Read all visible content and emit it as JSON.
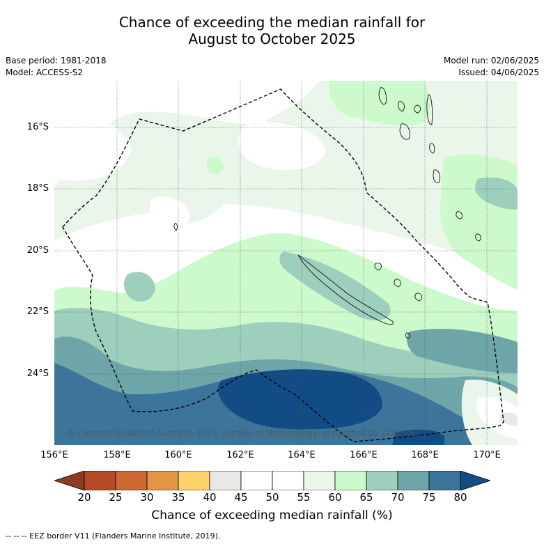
{
  "title_line1": "Chance of exceeding the median rainfall for",
  "title_line2": "August to October 2025",
  "base_period": "Base period: 1981-2018",
  "model": "Model: ACCESS-S2",
  "model_run": "Model run: 02/06/2025",
  "issued": "Issued: 04/06/2025",
  "lat_labels": [
    "16°S",
    "18°S",
    "20°S",
    "22°S",
    "24°S"
  ],
  "lon_labels": [
    "156°E",
    "158°E",
    "160°E",
    "162°E",
    "164°E",
    "166°E",
    "168°E",
    "170°E"
  ],
  "copyright": "© Commonwealth of Australia 2025, Bureau of Meteorology, supported by COSPPac",
  "colorbar": {
    "ticks": [
      "20",
      "25",
      "30",
      "35",
      "40",
      "45",
      "50",
      "55",
      "60",
      "65",
      "70",
      "75",
      "80"
    ],
    "colors": [
      "#8f3a22",
      "#b44a26",
      "#cf6732",
      "#e49547",
      "#fdd26a",
      "#eae8e4",
      "#ffffff",
      "#ffffff",
      "#eaf6ea",
      "#ccfacc",
      "#9ecfbd",
      "#6ea5a8",
      "#3d7499",
      "#124c85"
    ],
    "label": "Chance of exceeding median rainfall (%)"
  },
  "footnote": "--  --  -- EEZ border V11 (Flanders Marine Institute, 2019).",
  "colors": {
    "c55_60": "#eaf6ea",
    "c60_65": "#ccfacc",
    "c65_70": "#9ecfbd",
    "c70_75": "#6ea5a8",
    "c75_80": "#3d7499",
    "c80_plus": "#124c85",
    "c40_45": "#eae8e4"
  }
}
